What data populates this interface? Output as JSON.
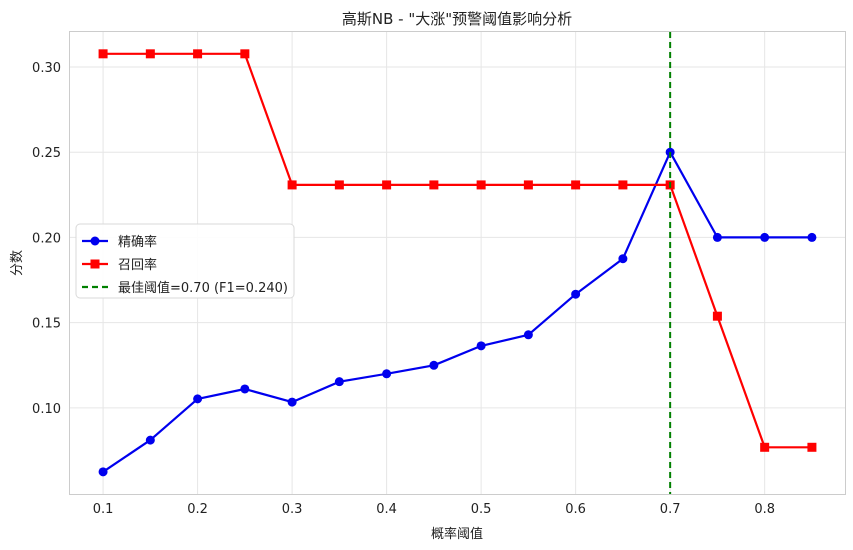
{
  "chart_data": {
    "type": "line",
    "title": "高斯NB - \"大涨\"预警阈值影响分析",
    "xlabel": "概率阈值",
    "ylabel": "分数",
    "xlim": [
      0.065,
      0.885
    ],
    "ylim": [
      0.0495,
      0.3205
    ],
    "xticks": [
      "0.1",
      "0.2",
      "0.3",
      "0.4",
      "0.5",
      "0.6",
      "0.7",
      "0.8"
    ],
    "yticks": [
      "0.10",
      "0.15",
      "0.20",
      "0.25",
      "0.30"
    ],
    "grid": true,
    "legend_position": "center-left",
    "x": [
      0.1,
      0.15,
      0.2,
      0.25,
      0.3,
      0.35,
      0.4,
      0.45,
      0.5,
      0.55,
      0.6,
      0.65,
      0.7,
      0.75,
      0.8,
      0.85
    ],
    "series": [
      {
        "name": "精确率",
        "color": "#0000ee",
        "marker": "circle",
        "values": [
          0.0625,
          0.0811,
          0.1053,
          0.1111,
          0.1034,
          0.1154,
          0.12,
          0.125,
          0.1364,
          0.1429,
          0.1667,
          0.1875,
          0.25,
          0.2,
          0.2,
          0.2
        ]
      },
      {
        "name": "召回率",
        "color": "#ff0000",
        "marker": "square",
        "values": [
          0.3077,
          0.3077,
          0.3077,
          0.3077,
          0.2308,
          0.2308,
          0.2308,
          0.2308,
          0.2308,
          0.2308,
          0.2308,
          0.2308,
          0.2308,
          0.1538,
          0.0769,
          0.0769
        ]
      }
    ],
    "annotations": [
      {
        "type": "vline",
        "x": 0.7,
        "label": "最佳阈值=0.70 (F1=0.240)",
        "color": "#008000",
        "style": "dashed"
      }
    ]
  }
}
